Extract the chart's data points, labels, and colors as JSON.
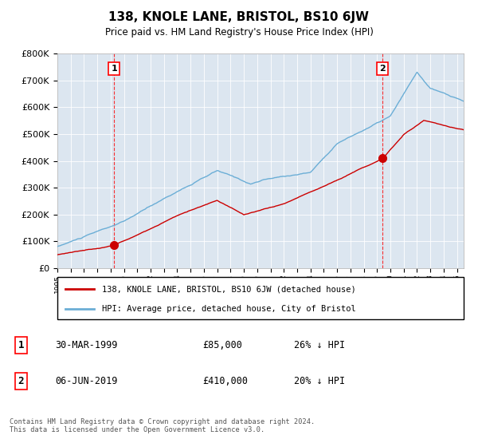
{
  "title": "138, KNOLE LANE, BRISTOL, BS10 6JW",
  "subtitle": "Price paid vs. HM Land Registry's House Price Index (HPI)",
  "plot_bg_color": "#dce6f0",
  "hpi_color": "#6baed6",
  "price_color": "#cc0000",
  "annotation1_date": 1999.24,
  "annotation1_value": 85000,
  "annotation1_label": "1",
  "annotation2_date": 2019.42,
  "annotation2_value": 410000,
  "annotation2_label": "2",
  "legend_entry1": "138, KNOLE LANE, BRISTOL, BS10 6JW (detached house)",
  "legend_entry2": "HPI: Average price, detached house, City of Bristol",
  "table_row1": [
    "1",
    "30-MAR-1999",
    "£85,000",
    "26% ↓ HPI"
  ],
  "table_row2": [
    "2",
    "06-JUN-2019",
    "£410,000",
    "20% ↓ HPI"
  ],
  "footer": "Contains HM Land Registry data © Crown copyright and database right 2024.\nThis data is licensed under the Open Government Licence v3.0.",
  "ylim": [
    0,
    800000
  ],
  "xlim_start": 1995.0,
  "xlim_end": 2025.5
}
